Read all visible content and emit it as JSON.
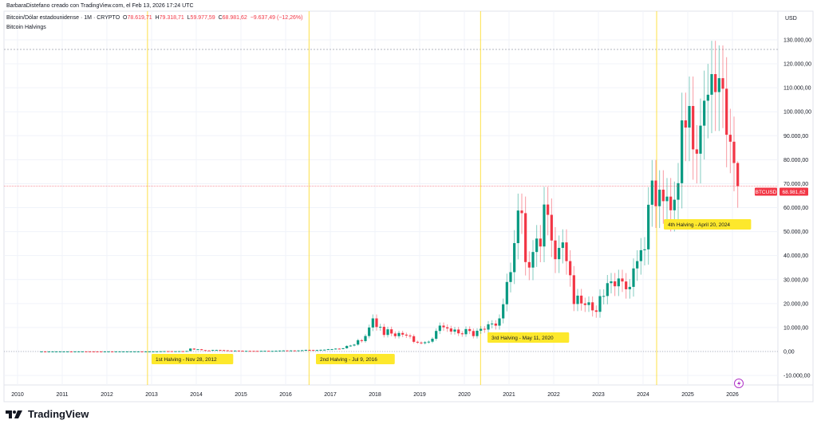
{
  "credit": "BarbaraDistefano creado con TradingView.com, el Feb 13, 2026 17:24 UTC",
  "legend": {
    "symbol": "Bitcoin/Dólar estadounidense · 1M · CRYPTO",
    "o_label": "O",
    "o": "78.619,71",
    "h_label": "H",
    "h": "79.318,71",
    "l_label": "L",
    "l": "59.977,59",
    "c_label": "C",
    "c": "68.981,62",
    "change": "−9.637,49 (−12,26%)",
    "indicator": "Bitcoin Halvings"
  },
  "currency": "USD",
  "brand": "TradingView",
  "colors": {
    "up": "#089981",
    "down": "#f23645",
    "halving": "#fde047",
    "label_bg": "#fde82c"
  },
  "chart_data": {
    "type": "candlestick",
    "title": "Bitcoin/Dólar estadounidense · 1M · CRYPTO",
    "interval": "1M",
    "start_month": "2010-07",
    "closes": [
      0.07,
      0.06,
      0.06,
      0.19,
      0.21,
      0.3,
      0.5,
      0.9,
      0.8,
      3.5,
      8.7,
      16.1,
      13.4,
      8.2,
      5.1,
      3.2,
      3,
      4.2,
      5.5,
      4.9,
      4.9,
      5,
      5.2,
      6.7,
      9.4,
      10.1,
      12.4,
      11.2,
      12.6,
      13.5,
      20,
      33,
      93,
      139,
      129,
      97,
      106,
      135,
      133,
      211,
      1205,
      805,
      938,
      573,
      457,
      448,
      630,
      640,
      586,
      480,
      387,
      338,
      375,
      320,
      217,
      254,
      244,
      236,
      230,
      263,
      284,
      230,
      236,
      314,
      377,
      430,
      368,
      437,
      416,
      448,
      531,
      673,
      624,
      575,
      609,
      700,
      745,
      963,
      970,
      1190,
      1080,
      1350,
      2300,
      2480,
      2875,
      4700,
      4340,
      6450,
      10000,
      13800,
      10200,
      10300,
      6900,
      9250,
      7500,
      6400,
      7730,
      7030,
      6630,
      6370,
      4040,
      3740,
      3460,
      3850,
      4100,
      5320,
      8570,
      10800,
      10100,
      9600,
      8300,
      9150,
      7570,
      7200,
      9350,
      8550,
      6420,
      8650,
      9460,
      9140,
      11350,
      11650,
      10780,
      13800,
      19700,
      28990,
      33100,
      45200,
      58800,
      57700,
      37300,
      35000,
      41500,
      47100,
      43800,
      61300,
      57000,
      46300,
      38500,
      43200,
      45500,
      37700,
      31800,
      19800,
      23300,
      20050,
      19400,
      20500,
      17150,
      16550,
      23100,
      23150,
      28500,
      29250,
      27200,
      30450,
      29200,
      25950,
      26950,
      34650,
      37700,
      42250,
      42600,
      61200,
      71300,
      60600,
      67500,
      62700,
      64600,
      58900,
      63300,
      70200,
      96400,
      93400,
      102400,
      84300,
      82500,
      94200,
      104600,
      107100,
      115700,
      108200,
      114000,
      109600,
      90400,
      87500,
      78620,
      68981.62
    ],
    "last": {
      "open": 78619.71,
      "high": 79318.71,
      "low": 59977.59,
      "close": 68981.62
    },
    "all_time_high": 126000,
    "y_ticks": [
      "130.000,00",
      "120.000,00",
      "110.000,00",
      "100.000,00",
      "90.000,00",
      "80.000,00",
      "70.000,00",
      "60.000,00",
      "50.000,00",
      "40.000,00",
      "30.000,00",
      "20.000,00",
      "10.000,00",
      "0,00",
      "-10.000,00"
    ],
    "y_tick_values": [
      130000,
      120000,
      110000,
      100000,
      90000,
      80000,
      70000,
      60000,
      50000,
      40000,
      30000,
      20000,
      10000,
      0,
      -10000
    ],
    "x_ticks": [
      "2010",
      "2011",
      "2012",
      "2013",
      "2014",
      "2015",
      "2016",
      "2017",
      "2018",
      "2019",
      "2020",
      "2021",
      "2022",
      "2023",
      "2024",
      "2025",
      "2026"
    ],
    "ylim": [
      -13000,
      137000
    ],
    "price_label": {
      "name": "BTCUSD",
      "value": "68.981,62"
    },
    "halvings": [
      {
        "date": "2012-11-28",
        "label": "1st Halving - Nov 28, 2012"
      },
      {
        "date": "2016-07-09",
        "label": "2nd Halving - Jul 9, 2016"
      },
      {
        "date": "2020-05-11",
        "label": "3rd Halving - May 11, 2020"
      },
      {
        "date": "2024-04-20",
        "label": "4th Halving - April 20, 2024"
      }
    ],
    "grid": true
  }
}
